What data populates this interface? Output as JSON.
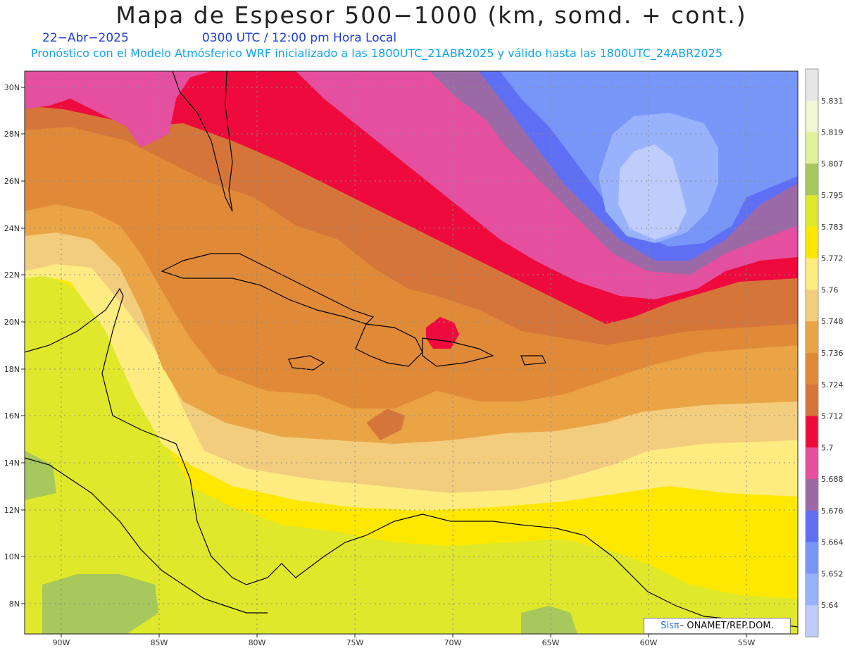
{
  "header": {
    "title": "Mapa de Espesor 500−1000 (km, somd. + cont.)",
    "date": "22−Abr−2025",
    "time": "0300 UTC / 12:00 pm Hora Local",
    "subtitle": "Pronóstico con el Modelo Atmósferico WRF inicializado a las 1800UTC_21ABR2025 y válido hasta las  1800UTC_24ABR2025"
  },
  "map": {
    "lat_ticks": [
      "30N",
      "28N",
      "26N",
      "24N",
      "22N",
      "20N",
      "18N",
      "16N",
      "14N",
      "12N",
      "10N",
      "8N"
    ],
    "lon_ticks": [
      "90W",
      "85W",
      "80W",
      "75W",
      "70W",
      "65W",
      "60W",
      "55W"
    ],
    "lon_range": [
      -92,
      -52.5
    ],
    "lat_range": [
      6.8,
      30.7
    ]
  },
  "legend": {
    "labels": [
      "5.831",
      "5.819",
      "5.807",
      "5.795",
      "5.783",
      "5.772",
      "5.76",
      "5.748",
      "5.736",
      "5.724",
      "5.712",
      "5.7",
      "5.688",
      "5.676",
      "5.664",
      "5.652",
      "5.64"
    ],
    "colors": [
      "#e6e6e6",
      "#f2f5d4",
      "#e2f29a",
      "#a6c85c",
      "#dfe82a",
      "#ffe800",
      "#ffec80",
      "#f2cd7e",
      "#eba445",
      "#e08a38",
      "#d5753a",
      "#ee0a3c",
      "#e44f9f",
      "#9b6aa6",
      "#5f6ff4",
      "#7796f8",
      "#98b3fb",
      "#bfcdfc"
    ]
  },
  "credit": {
    "brand": "Sisπ",
    "text": "– ONAMET/REP.DOM."
  }
}
